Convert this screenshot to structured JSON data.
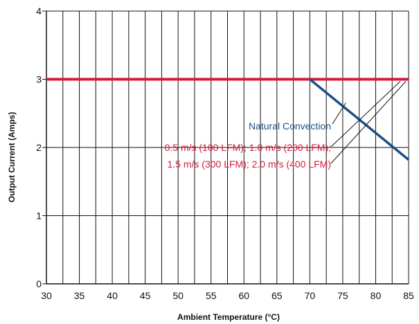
{
  "chart_data": {
    "type": "line",
    "title": "",
    "xlabel": "Ambient Temperature (°C)",
    "ylabel": "Output Current (Amps)",
    "xlim": [
      30,
      85
    ],
    "ylim": [
      0,
      4
    ],
    "x_ticks": [
      30,
      35,
      40,
      45,
      50,
      55,
      60,
      65,
      70,
      75,
      80,
      85
    ],
    "y_ticks": [
      0,
      1,
      2,
      3,
      4
    ],
    "grid": true,
    "series": [
      {
        "name": "0.5 m/s (100 LFM); 1.0 m/s (200 LFM); 1.5 m/s (300 LFM); 2.0 m/s (400 LFM)",
        "color": "#d5193c",
        "x": [
          30,
          85
        ],
        "y": [
          3,
          3
        ]
      },
      {
        "name": "Natural Convection",
        "color": "#1b4f86",
        "x": [
          70,
          85
        ],
        "y": [
          3,
          1.82
        ]
      }
    ],
    "annotations": {
      "natural_convection": "Natural Convection",
      "airflow_line1": "0.5 m/s (100 LFM); 1.0 m/s (200 LFM);",
      "airflow_line2": "1.5 m/s (300 LFM); 2.0 m/s (400 LFM)"
    }
  }
}
